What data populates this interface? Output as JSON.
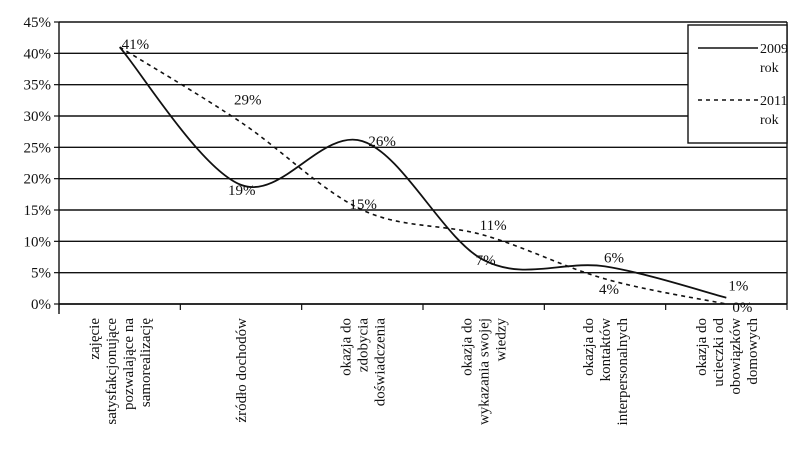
{
  "chart_data": {
    "type": "line",
    "categories": [
      [
        "zajęcie",
        "satysfakcjonujące",
        "pozwalające na",
        "samorealizację"
      ],
      [
        "źródło dochodów"
      ],
      [
        "okazja do",
        "zdobycia",
        "doświadczenia"
      ],
      [
        "okazja do",
        "wykazania swojej",
        "wiedzy"
      ],
      [
        "okazja do",
        "kontaktów",
        "interpersonalnych"
      ],
      [
        "okazja do",
        "ucieczki od",
        "obowiązków",
        "domowych"
      ]
    ],
    "series": [
      {
        "name": "2009 rok",
        "values": [
          41,
          19,
          26,
          7,
          6,
          1
        ],
        "labels": [
          "41%",
          "19%",
          "26%",
          "7%",
          "6%",
          "1%"
        ],
        "style": "solid"
      },
      {
        "name": "2011 rok",
        "values": [
          41,
          29,
          15,
          11,
          4,
          0
        ],
        "labels": [
          "",
          "29%",
          "15%",
          "11%",
          "4%",
          "0%"
        ],
        "style": "dashed"
      }
    ],
    "ylim": [
      0,
      45
    ],
    "yticks": [
      "0%",
      "5%",
      "10%",
      "15%",
      "20%",
      "25%",
      "30%",
      "35%",
      "40%",
      "45%"
    ],
    "ytick_values": [
      0,
      5,
      10,
      15,
      20,
      25,
      30,
      35,
      40,
      45
    ],
    "grid": true,
    "legend_position": "top-right",
    "legend": [
      [
        "2009",
        "rok"
      ],
      [
        "2011",
        "rok"
      ]
    ]
  }
}
